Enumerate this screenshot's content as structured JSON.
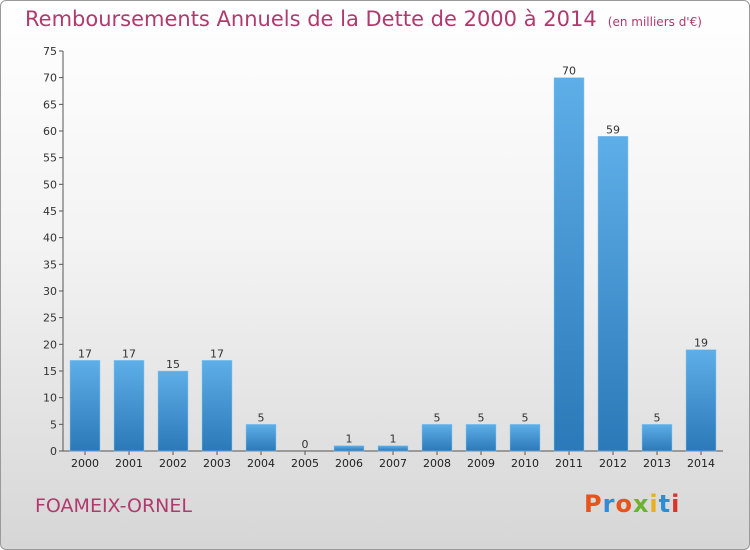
{
  "title": "Remboursements Annuels de la Dette de 2000 à 2014",
  "unit": "(en milliers d'€)",
  "commune": "FOAMEIX-ORNEL",
  "logo": {
    "text": "Proxiti",
    "colors": [
      "#e8531c",
      "#2a8fd6",
      "#e8531c",
      "#6ab42d",
      "#e8b01c",
      "#2a8fd6",
      "#d8352a"
    ]
  },
  "colors": {
    "title": "#b03a6e",
    "bar_light": "#5eaee8",
    "bar_dark": "#2b79b8"
  },
  "chart_data": {
    "type": "bar",
    "categories": [
      "2000",
      "2001",
      "2002",
      "2003",
      "2004",
      "2005",
      "2006",
      "2007",
      "2008",
      "2009",
      "2010",
      "2011",
      "2012",
      "2013",
      "2014"
    ],
    "values": [
      17,
      17,
      15,
      17,
      5,
      0,
      1,
      1,
      5,
      5,
      5,
      70,
      59,
      5,
      19
    ],
    "ylim": [
      0,
      75
    ],
    "yticks": [
      0,
      5,
      10,
      15,
      20,
      25,
      30,
      35,
      40,
      45,
      50,
      55,
      60,
      65,
      70,
      75
    ],
    "grid": false,
    "xlabel": "",
    "ylabel": ""
  }
}
